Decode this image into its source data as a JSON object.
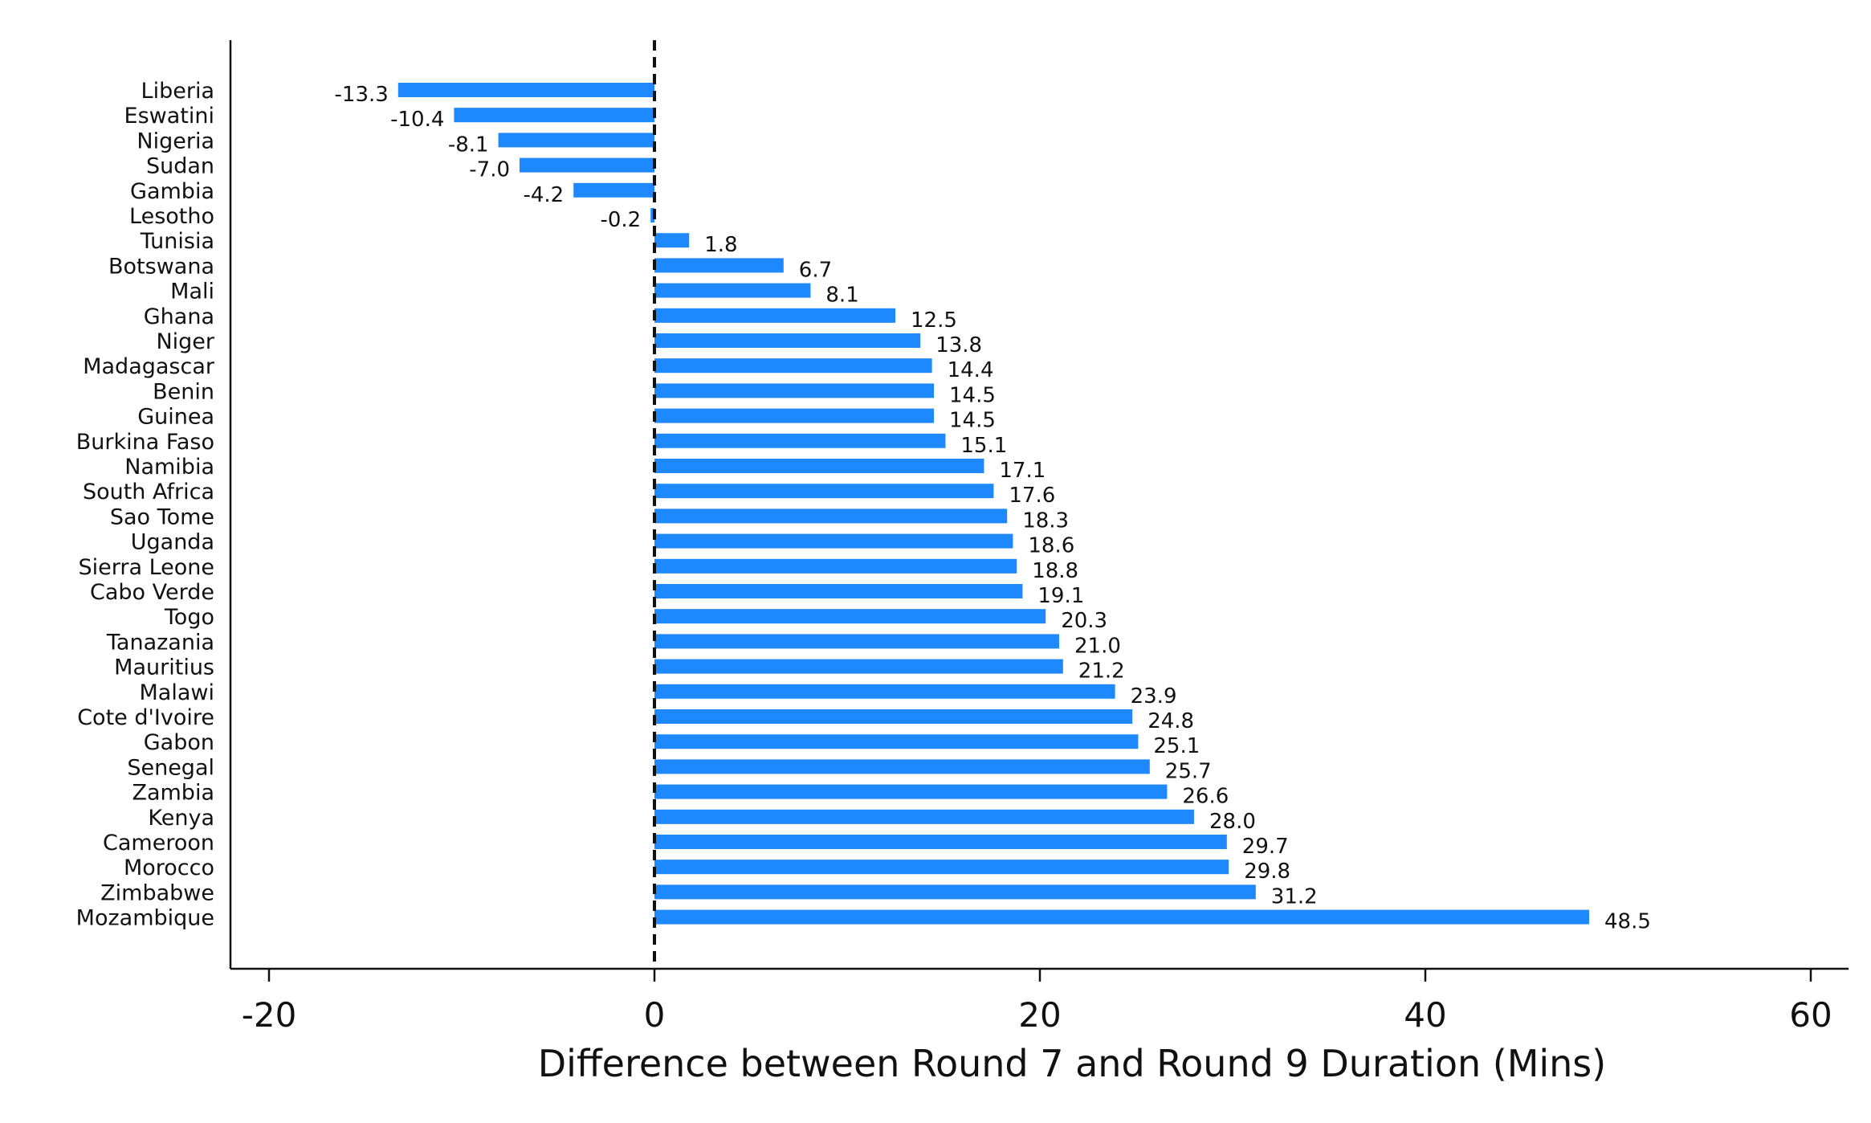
{
  "chart_data": {
    "type": "bar",
    "orientation": "horizontal",
    "title": "",
    "xlabel": "Difference between Round 7 and Round 9 Duration (Mins)",
    "ylabel": "",
    "xlim": [
      -20,
      60
    ],
    "x_ticks": [
      -20,
      0,
      20,
      40,
      60
    ],
    "grid": false,
    "reference_line": 0,
    "bar_color": "#1E88FF",
    "categories": [
      "Liberia",
      "Eswatini",
      "Nigeria",
      "Sudan",
      "Gambia",
      "Lesotho",
      "Tunisia",
      "Botswana",
      "Mali",
      "Ghana",
      "Niger",
      "Madagascar",
      "Benin",
      "Guinea",
      "Burkina Faso",
      "Namibia",
      "South Africa",
      "Sao Tome",
      "Uganda",
      "Sierra Leone",
      "Cabo Verde",
      "Togo",
      "Tanazania",
      "Mauritius",
      "Malawi",
      "Cote d'Ivoire",
      "Gabon",
      "Senegal",
      "Zambia",
      "Kenya",
      "Cameroon",
      "Morocco",
      "Zimbabwe",
      "Mozambique"
    ],
    "values": [
      -13.3,
      -10.4,
      -8.1,
      -7.0,
      -4.2,
      -0.2,
      1.8,
      6.7,
      8.1,
      12.5,
      13.8,
      14.4,
      14.5,
      14.5,
      15.1,
      17.1,
      17.6,
      18.3,
      18.6,
      18.8,
      19.1,
      20.3,
      21.0,
      21.2,
      23.9,
      24.8,
      25.1,
      25.7,
      26.6,
      28.0,
      29.7,
      29.8,
      31.2,
      48.5
    ],
    "value_labels": [
      "-13.3",
      "-10.4",
      "-8.1",
      "-7.0",
      "-4.2",
      "-0.2",
      "1.8",
      "6.7",
      "8.1",
      "12.5",
      "13.8",
      "14.4",
      "14.5",
      "14.5",
      "15.1",
      "17.1",
      "17.6",
      "18.3",
      "18.6",
      "18.8",
      "19.1",
      "20.3",
      "21.0",
      "21.2",
      "23.9",
      "24.8",
      "25.1",
      "25.7",
      "26.6",
      "28.0",
      "29.7",
      "29.8",
      "31.2",
      "48.5"
    ]
  }
}
